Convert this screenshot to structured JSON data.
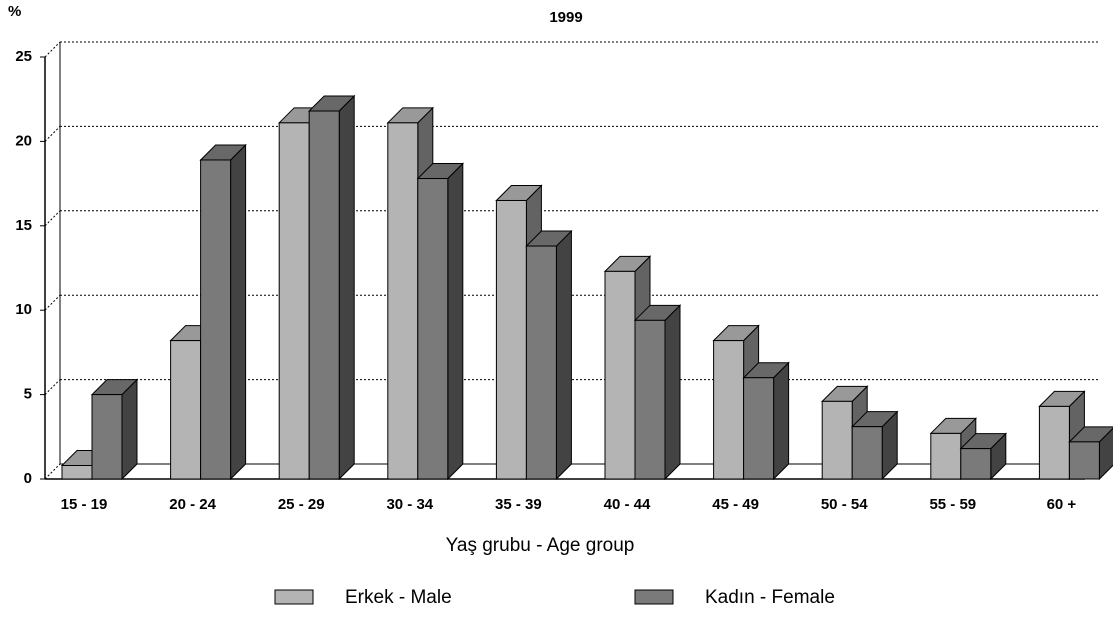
{
  "chart_data": {
    "type": "bar3d",
    "title": "1999",
    "y_label": "%",
    "x_label": "Yaş grubu - Age group",
    "categories": [
      "15 - 19",
      "20 - 24",
      "25 - 29",
      "30 - 34",
      "35 - 39",
      "40 - 44",
      "45 - 49",
      "50 - 54",
      "55 - 59",
      "60 +"
    ],
    "series": [
      {
        "name": "Erkek - Male",
        "color": "#b4b4b4",
        "values": [
          0.8,
          8.2,
          21.1,
          21.1,
          16.5,
          12.3,
          8.2,
          4.6,
          2.7,
          4.3
        ]
      },
      {
        "name": "Kadın - Female",
        "color": "#7a7a7a",
        "values": [
          5.0,
          18.9,
          21.8,
          17.8,
          13.8,
          9.4,
          6.0,
          3.1,
          1.8,
          2.2
        ]
      }
    ],
    "ylim": [
      0,
      25
    ],
    "yticks": [
      0,
      5,
      10,
      15,
      20,
      25
    ],
    "grid": true
  }
}
